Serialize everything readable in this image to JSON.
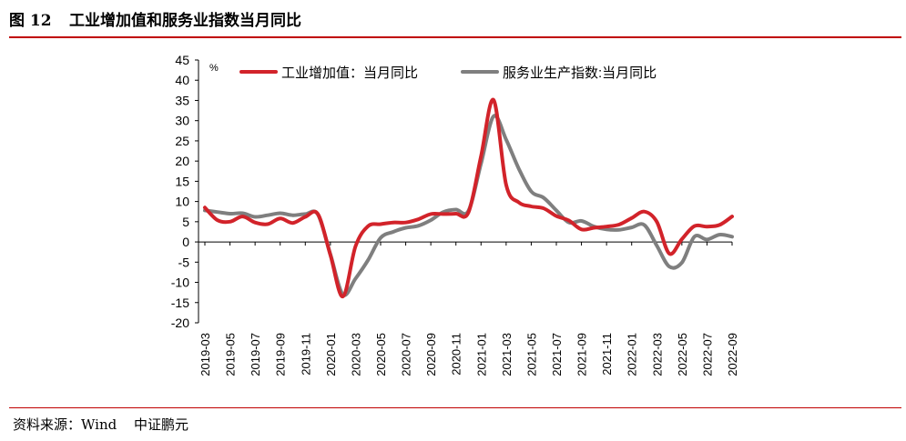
{
  "header": {
    "figure_number": "图 12",
    "title": "工业增加值和服务业指数当月同比"
  },
  "footer": {
    "source_label": "资料来源：Wind",
    "publisher": "中证鹏元"
  },
  "colors": {
    "accent": "#c00000",
    "industrial": "#d2232a",
    "services": "#7f7f7f"
  },
  "chart_data": {
    "type": "line",
    "title": "工业增加值和服务业指数当月同比",
    "ylabel": "%",
    "xlabel": "",
    "ylim": [
      -20,
      45
    ],
    "ytick_step": 5,
    "grid": false,
    "legend_position": "top",
    "x": [
      "2019-03",
      "2019-04",
      "2019-05",
      "2019-06",
      "2019-07",
      "2019-08",
      "2019-09",
      "2019-10",
      "2019-11",
      "2019-12",
      "2020-01",
      "2020-02",
      "2020-03",
      "2020-04",
      "2020-05",
      "2020-06",
      "2020-07",
      "2020-08",
      "2020-09",
      "2020-10",
      "2020-11",
      "2020-12",
      "2021-01",
      "2021-02",
      "2021-03",
      "2021-04",
      "2021-05",
      "2021-06",
      "2021-07",
      "2021-08",
      "2021-09",
      "2021-10",
      "2021-11",
      "2021-12",
      "2022-01",
      "2022-02",
      "2022-03",
      "2022-04",
      "2022-05",
      "2022-06",
      "2022-07",
      "2022-08",
      "2022-09"
    ],
    "xtick_labels": [
      "2019-03",
      "2019-05",
      "2019-07",
      "2019-09",
      "2019-11",
      "2020-01",
      "2020-03",
      "2020-05",
      "2020-07",
      "2020-09",
      "2020-11",
      "2021-01",
      "2021-03",
      "2021-05",
      "2021-07",
      "2021-09",
      "2021-11",
      "2022-01",
      "2022-03",
      "2022-05",
      "2022-07",
      "2022-09"
    ],
    "series": [
      {
        "name": "工业增加值：当月同比",
        "color": "#d2232a",
        "values": [
          8.5,
          5.4,
          5.0,
          6.3,
          4.8,
          4.4,
          5.8,
          4.7,
          6.2,
          6.9,
          null,
          -13.5,
          -1.1,
          3.9,
          4.4,
          4.8,
          4.8,
          5.6,
          6.9,
          6.9,
          7.0,
          7.3,
          null,
          35.1,
          14.1,
          9.8,
          8.8,
          8.3,
          6.4,
          5.3,
          3.1,
          3.5,
          3.8,
          4.3,
          null,
          7.5,
          5.0,
          -2.9,
          0.7,
          3.9,
          3.8,
          4.2,
          6.3
        ]
      },
      {
        "name": "服务业生产指数:当月同比",
        "color": "#7f7f7f",
        "values": [
          7.8,
          7.4,
          7.0,
          7.1,
          6.2,
          6.6,
          7.1,
          6.6,
          6.9,
          6.8,
          null,
          -13.0,
          -9.1,
          -4.5,
          1.0,
          2.5,
          3.5,
          4.0,
          5.4,
          7.4,
          8.0,
          7.7,
          null,
          31.1,
          25.3,
          18.2,
          12.5,
          10.9,
          7.8,
          4.8,
          5.2,
          3.8,
          3.1,
          3.0,
          null,
          4.2,
          -0.9,
          -6.1,
          -5.1,
          1.3,
          0.6,
          1.8,
          1.3
        ]
      }
    ]
  }
}
